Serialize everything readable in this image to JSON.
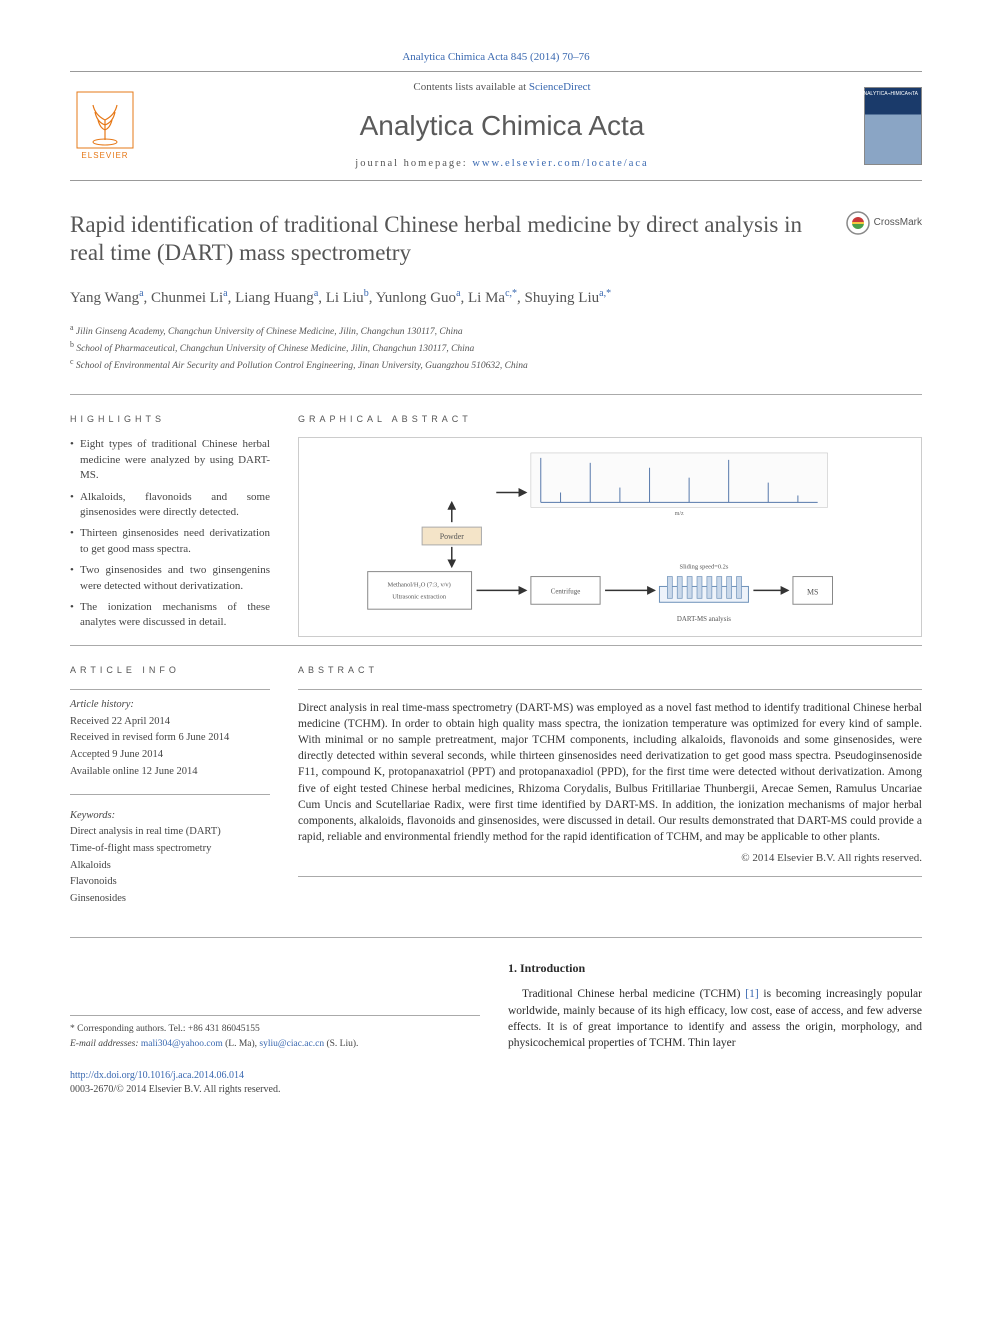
{
  "header": {
    "top_citation": "Analytica Chimica Acta 845 (2014) 70–76",
    "contents_prefix": "Contents lists available at ",
    "contents_link": "ScienceDirect",
    "journal_name": "Analytica Chimica Acta",
    "homepage_prefix": "journal homepage: ",
    "homepage_link": "www.elsevier.com/locate/aca",
    "publisher": "ELSEVIER"
  },
  "article": {
    "title": "Rapid identification of traditional Chinese herbal medicine by direct analysis in real time (DART) mass spectrometry",
    "crossmark": "CrossMark",
    "authors_html": "Yang Wang<sup>a</sup>, Chunmei Li<sup>a</sup>, Liang Huang<sup>a</sup>, Li Liu<sup>b</sup>, Yunlong Guo<sup>a</sup>, Li Ma<sup>c,*</sup>, Shuying Liu<sup>a,*</sup>",
    "affiliations": {
      "a": "Jilin Ginseng Academy, Changchun University of Chinese Medicine, Jilin, Changchun 130117, China",
      "b": "School of Pharmaceutical, Changchun University of Chinese Medicine, Jilin, Changchun 130117, China",
      "c": "School of Environmental Air Security and Pollution Control Engineering, Jinan University, Guangzhou 510632, China"
    }
  },
  "highlights": {
    "label": "HIGHLIGHTS",
    "items": [
      "Eight types of traditional Chinese herbal medicine were analyzed by using DART-MS.",
      "Alkaloids, flavonoids and some ginsenosides were directly detected.",
      "Thirteen ginsenosides need derivatization to get good mass spectra.",
      "Two ginsenosides and two ginsengenins were detected without derivatization.",
      "The ionization mechanisms of these analytes were discussed in detail."
    ]
  },
  "graphical_abstract": {
    "label": "GRAPHICAL ABSTRACT",
    "boxes": {
      "top": "Powder",
      "left1": "Methanol/H2O (7:3, v/v)",
      "left2": "Ultrasonic extraction",
      "mid": "Centrifuge",
      "right": "MS",
      "dart": "DART-MS analysis",
      "sliding": "Sliding speed=0.2s"
    }
  },
  "article_info": {
    "label": "ARTICLE INFO",
    "history_title": "Article history:",
    "history": [
      "Received 22 April 2014",
      "Received in revised form 6 June 2014",
      "Accepted 9 June 2014",
      "Available online 12 June 2014"
    ],
    "keywords_title": "Keywords:",
    "keywords": [
      "Direct analysis in real time (DART)",
      "Time-of-flight mass spectrometry",
      "Alkaloids",
      "Flavonoids",
      "Ginsenosides"
    ]
  },
  "abstract": {
    "label": "ABSTRACT",
    "text": "Direct analysis in real time-mass spectrometry (DART-MS) was employed as a novel fast method to identify traditional Chinese herbal medicine (TCHM). In order to obtain high quality mass spectra, the ionization temperature was optimized for every kind of sample. With minimal or no sample pretreatment, major TCHM components, including alkaloids, flavonoids and some ginsenosides, were directly detected within several seconds, while thirteen ginsenosides need derivatization to get good mass spectra. Pseudoginsenoside F11, compound K, protopanaxatriol (PPT) and protopanaxadiol (PPD), for the first time were detected without derivatization. Among five of eight tested Chinese herbal medicines, Rhizoma Corydalis, Bulbus Fritillariae Thunbergii, Arecae Semen, Ramulus Uncariae Cum Uncis and Scutellariae Radix, were first time identified by DART-MS. In addition, the ionization mechanisms of major herbal components, alkaloids, flavonoids and ginsenosides, were discussed in detail. Our results demonstrated that DART-MS could provide a rapid, reliable and environmental friendly method for the rapid identification of TCHM, and may be applicable to other plants.",
    "copyright": "© 2014 Elsevier B.V. All rights reserved."
  },
  "introduction": {
    "heading": "1. Introduction",
    "text_pre": "Traditional Chinese herbal medicine (TCHM) ",
    "ref": "[1]",
    "text_post": " is becoming increasingly popular worldwide, mainly because of its high efficacy, low cost, ease of access, and few adverse effects. It is of great importance to identify and assess the origin, morphology, and physicochemical properties of TCHM. Thin layer"
  },
  "corresponding": {
    "line1": "* Corresponding authors. Tel.: +86 431 86045155",
    "label": "E-mail addresses: ",
    "email1": "mali304@yahoo.com",
    "name1": " (L. Ma), ",
    "email2": "syliu@ciac.ac.cn",
    "name2": " (S. Liu)."
  },
  "footer": {
    "doi": "http://dx.doi.org/10.1016/j.aca.2014.06.014",
    "issn_line": "0003-2670/© 2014 Elsevier B.V. All rights reserved."
  },
  "colors": {
    "link": "#3968b0",
    "elsevier": "#e67817",
    "text": "#2a2a2a",
    "muted": "#555555",
    "rule": "#aaaaaa"
  }
}
